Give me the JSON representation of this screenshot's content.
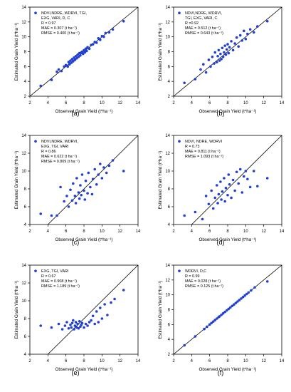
{
  "chart_data": [
    {
      "type": "scatter",
      "panel_label": "(a)",
      "xlabel": "Observed Grain Yield (t*ha⁻¹)",
      "ylabel": "Estimated Grain Yield (t*ha⁻¹)",
      "xlim": [
        2,
        14
      ],
      "ylim": [
        2,
        14
      ],
      "xticks": [
        "2",
        "4",
        "6",
        "8",
        "10",
        "12",
        "14"
      ],
      "yticks": [
        "2",
        "4",
        "6",
        "8",
        "10",
        "12",
        "14"
      ],
      "reference_line": "1:1",
      "grid": false,
      "legend_position": "top-left",
      "marker_color": "#1f3fd6",
      "legend_lines": [
        "NDVI,NDRE, WDRVI, TGI,",
        "EXG, VARI, D, C",
        "R = 0.97",
        "MAE = 0.307 (t ha⁻¹)",
        "RMSE = 0.400 (t ha⁻¹)"
      ],
      "x": [
        3.2,
        4.4,
        5.0,
        5.2,
        5.5,
        5.8,
        6.0,
        6.2,
        6.3,
        6.4,
        6.5,
        6.6,
        6.7,
        6.8,
        6.9,
        7.0,
        7.1,
        7.2,
        7.3,
        7.4,
        7.5,
        7.6,
        7.7,
        7.8,
        7.9,
        8.0,
        8.1,
        8.2,
        8.3,
        8.4,
        8.6,
        8.8,
        9.0,
        9.2,
        9.4,
        9.6,
        9.8,
        10.0,
        10.2,
        10.4,
        10.8,
        11.2,
        12.4
      ],
      "y": [
        3.4,
        4.2,
        5.3,
        5.6,
        5.4,
        6.0,
        6.2,
        6.0,
        6.6,
        6.3,
        6.8,
        6.5,
        7.0,
        6.7,
        7.2,
        6.9,
        7.4,
        7.1,
        7.6,
        7.3,
        7.8,
        7.5,
        7.9,
        8.0,
        7.7,
        8.2,
        7.9,
        8.4,
        8.1,
        8.6,
        8.4,
        8.9,
        9.0,
        9.3,
        9.2,
        9.8,
        9.6,
        10.1,
        10.0,
        10.5,
        10.6,
        11.0,
        12.1
      ]
    },
    {
      "type": "scatter",
      "panel_label": "(b)",
      "xlabel": "Observed Grain Yield (t*ha⁻¹)",
      "ylabel": "Estimated Grain Yield (t*ha⁻¹)",
      "xlim": [
        2,
        14
      ],
      "ylim": [
        2,
        14
      ],
      "xticks": [
        "2",
        "4",
        "6",
        "8",
        "10",
        "12",
        "14"
      ],
      "yticks": [
        "2",
        "4",
        "6",
        "8",
        "10",
        "12",
        "14"
      ],
      "reference_line": "1:1",
      "grid": false,
      "legend_position": "top-left",
      "marker_color": "#1f3fd6",
      "legend_lines": [
        "NDVI,NDRE, WDRVI,",
        "TGI, EXG, VARI, C",
        "R =0.92",
        "MAE = 0.512 (t ha⁻¹)",
        "RMSE = 0.643 (t ha⁻¹)"
      ],
      "x": [
        3.2,
        4.4,
        5.0,
        5.3,
        5.6,
        5.9,
        6.1,
        6.3,
        6.5,
        6.6,
        6.8,
        6.9,
        7.0,
        7.1,
        7.2,
        7.3,
        7.4,
        7.5,
        7.6,
        7.7,
        7.8,
        7.9,
        8.0,
        8.1,
        8.2,
        8.4,
        8.6,
        8.8,
        9.0,
        9.2,
        9.4,
        9.6,
        9.8,
        10.0,
        10.2,
        10.5,
        10.9,
        11.3,
        12.4
      ],
      "y": [
        3.8,
        4.3,
        5.6,
        6.3,
        5.2,
        6.9,
        6.0,
        7.3,
        6.4,
        7.9,
        6.6,
        7.4,
        8.2,
        6.8,
        7.7,
        7.0,
        8.5,
        7.3,
        7.9,
        8.8,
        7.6,
        8.3,
        9.0,
        7.8,
        8.6,
        9.4,
        8.2,
        9.1,
        9.9,
        8.7,
        10.2,
        9.5,
        10.8,
        9.7,
        10.4,
        11.0,
        10.6,
        11.4,
        12.1
      ]
    },
    {
      "type": "scatter",
      "panel_label": "(c)",
      "xlabel": "Observed Grain Yield (t*ha⁻¹)",
      "ylabel": "Estimated Grain Yield (t*ha⁻¹)",
      "xlim": [
        2,
        14
      ],
      "ylim": [
        4,
        14
      ],
      "xticks": [
        "2",
        "4",
        "6",
        "8",
        "10",
        "12",
        "14"
      ],
      "yticks": [
        "4",
        "6",
        "8",
        "10",
        "12",
        "14"
      ],
      "reference_line": "1:1",
      "grid": false,
      "legend_position": "top-left",
      "marker_color": "#1f3fd6",
      "legend_lines": [
        "NDVI,NDRE, WDRVI,",
        "EXG, TGI, VARI",
        "R = 0.86",
        "MAE = 0.622 (t ha⁻¹)",
        "RMSE = 0.809 (t ha⁻¹)"
      ],
      "x": [
        3.2,
        4.4,
        5.0,
        5.4,
        5.8,
        6.1,
        6.3,
        6.5,
        6.7,
        6.8,
        7.0,
        7.1,
        7.2,
        7.4,
        7.5,
        7.6,
        7.7,
        7.8,
        8.0,
        8.1,
        8.2,
        8.4,
        8.5,
        8.7,
        8.9,
        9.0,
        9.2,
        9.4,
        9.6,
        9.8,
        10.0,
        10.2,
        10.5,
        10.8,
        11.2,
        12.4
      ],
      "y": [
        5.2,
        5.0,
        5.0,
        8.2,
        6.6,
        7.2,
        6.0,
        7.9,
        6.7,
        8.6,
        7.2,
        6.4,
        9.2,
        7.6,
        6.9,
        8.4,
        7.3,
        9.6,
        7.8,
        6.8,
        8.9,
        7.5,
        9.8,
        8.2,
        7.4,
        9.1,
        10.2,
        8.5,
        9.6,
        10.8,
        9.2,
        10.4,
        9.8,
        10.6,
        11.2,
        10.0
      ]
    },
    {
      "type": "scatter",
      "panel_label": "(d)",
      "xlabel": "Observed Grain Yield (t*ha⁻¹)",
      "ylabel": "Estimated Grain Yield (t*ha⁻¹)",
      "xlim": [
        2,
        14
      ],
      "ylim": [
        4,
        14
      ],
      "xticks": [
        "2",
        "4",
        "6",
        "8",
        "10",
        "12",
        "14"
      ],
      "yticks": [
        "4",
        "6",
        "8",
        "10",
        "12",
        "14"
      ],
      "reference_line": "1:1",
      "grid": false,
      "legend_position": "top-left",
      "marker_color": "#1f3fd6",
      "legend_lines": [
        "NDVI, NDRE, WDRVI",
        "R = 0.73",
        "MAE = 0.811 (t ha⁻¹)",
        "RMSE = 1.093 (t ha⁻¹)"
      ],
      "x": [
        3.2,
        4.4,
        5.2,
        5.6,
        5.9,
        6.2,
        6.4,
        6.6,
        6.8,
        6.9,
        7.0,
        7.2,
        7.3,
        7.4,
        7.6,
        7.7,
        7.8,
        8.0,
        8.1,
        8.2,
        8.4,
        8.6,
        8.8,
        9.0,
        9.2,
        9.4,
        9.6,
        9.8,
        10.0,
        10.2,
        10.5,
        10.9,
        11.3,
        12.4
      ],
      "y": [
        5.0,
        5.4,
        4.6,
        7.2,
        6.3,
        7.8,
        5.8,
        7.0,
        8.4,
        6.4,
        7.4,
        8.8,
        6.8,
        7.7,
        9.2,
        6.6,
        8.1,
        7.3,
        9.6,
        8.5,
        7.0,
        9.0,
        7.8,
        9.9,
        8.6,
        10.2,
        7.6,
        9.4,
        10.0,
        9.1,
        8.2,
        10.0,
        8.3,
        9.2
      ]
    },
    {
      "type": "scatter",
      "panel_label": "(e)",
      "xlabel": "Observed Grain Yield (t*ha⁻¹)",
      "ylabel": "Estimated Grain Yield (t*ha⁻¹)",
      "xlim": [
        2,
        14
      ],
      "ylim": [
        4,
        14
      ],
      "xticks": [
        "2",
        "4",
        "6",
        "8",
        "10",
        "12",
        "14"
      ],
      "yticks": [
        "4",
        "6",
        "8",
        "10",
        "12",
        "14"
      ],
      "reference_line": "1:1",
      "grid": false,
      "legend_position": "top-left",
      "marker_color": "#1f3fd6",
      "legend_lines": [
        "EXG, TGI, VARI",
        "R = 0.67",
        "MAE = 0.908 (t ha⁻¹)",
        "RMSE = 1.189 (t ha⁻¹)"
      ],
      "x": [
        3.2,
        4.4,
        5.2,
        5.6,
        5.9,
        6.1,
        6.3,
        6.5,
        6.6,
        6.7,
        6.8,
        6.9,
        7.0,
        7.1,
        7.2,
        7.3,
        7.4,
        7.5,
        7.6,
        7.7,
        7.8,
        8.0,
        8.2,
        8.4,
        8.6,
        8.8,
        9.0,
        9.2,
        9.4,
        9.6,
        9.8,
        10.0,
        10.3,
        10.6,
        11.0,
        11.4,
        12.4
      ],
      "y": [
        7.2,
        7.0,
        7.4,
        6.8,
        7.2,
        7.6,
        6.9,
        7.3,
        7.0,
        7.5,
        7.8,
        6.8,
        7.2,
        7.6,
        7.0,
        7.4,
        6.9,
        7.7,
        7.1,
        7.3,
        7.5,
        7.0,
        7.4,
        7.2,
        7.6,
        7.8,
        8.3,
        7.4,
        8.8,
        7.6,
        9.2,
        8.0,
        9.6,
        8.4,
        9.8,
        10.2,
        11.2
      ]
    },
    {
      "type": "scatter",
      "panel_label": "(f)",
      "xlabel": "Observed Grain Yield (t*ha⁻¹)",
      "ylabel": "Estimated Grain Yield (t*ha⁻¹)",
      "xlim": [
        2,
        14
      ],
      "ylim": [
        2,
        14
      ],
      "xticks": [
        "2",
        "4",
        "6",
        "8",
        "10",
        "12",
        "14"
      ],
      "yticks": [
        "2",
        "4",
        "6",
        "8",
        "10",
        "12",
        "14"
      ],
      "reference_line": "1:1",
      "grid": false,
      "legend_position": "top-left",
      "marker_color": "#1f3fd6",
      "legend_lines": [
        "WDRVI, D,C",
        "R = 0.99",
        "MAE = 0.028 (t ha⁻¹)",
        "RMSE = 0.125 (t ha⁻¹)"
      ],
      "x": [
        3.2,
        4.4,
        5.4,
        5.7,
        6.0,
        6.2,
        6.4,
        6.6,
        6.8,
        7.0,
        7.1,
        7.3,
        7.5,
        7.7,
        7.9,
        8.1,
        8.3,
        8.5,
        8.7,
        8.9,
        9.1,
        9.3,
        9.5,
        9.7,
        9.9,
        10.1,
        10.3,
        10.6,
        11.0,
        12.4
      ],
      "y": [
        3.2,
        4.4,
        5.4,
        5.7,
        6.0,
        6.2,
        6.4,
        6.6,
        6.8,
        7.0,
        7.1,
        7.3,
        7.5,
        7.7,
        7.9,
        8.1,
        8.3,
        8.5,
        8.7,
        8.9,
        9.1,
        9.3,
        9.5,
        9.7,
        9.9,
        10.1,
        10.3,
        10.6,
        11.0,
        11.8
      ]
    }
  ]
}
